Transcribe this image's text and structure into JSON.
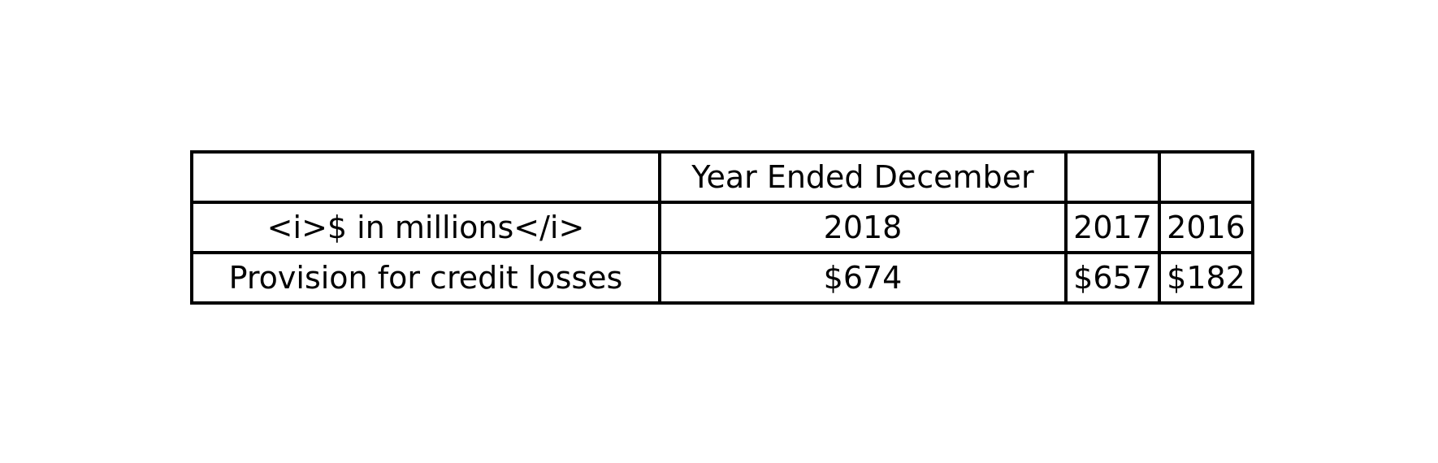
{
  "table": {
    "header": {
      "group_label": "Year Ended December"
    },
    "subheader": {
      "label": "<i>$ in millions</i>",
      "years": [
        "2018",
        "2017",
        "2016"
      ]
    },
    "rows": [
      {
        "label": "Provision for credit losses",
        "values": [
          "$674",
          "$657",
          "$182"
        ]
      }
    ]
  }
}
